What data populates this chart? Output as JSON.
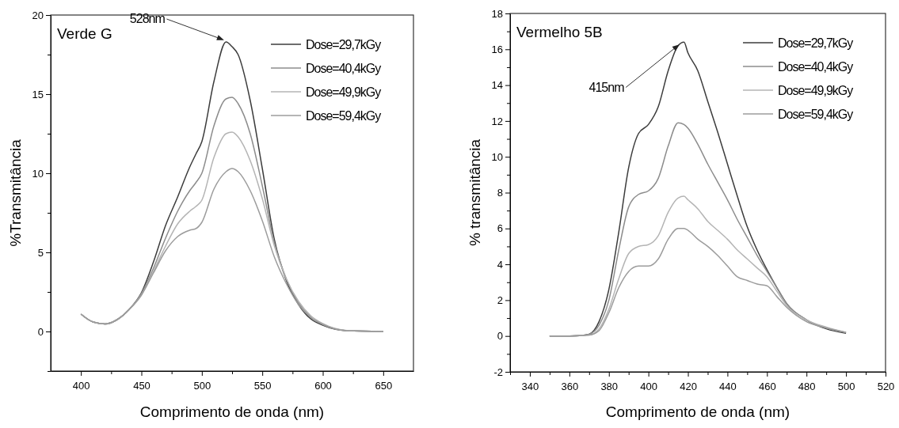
{
  "chart_data": [
    {
      "type": "line",
      "title": "Verde G",
      "xlabel": "Comprimento de onda (nm)",
      "ylabel": "%Transmitância",
      "xlim": [
        375,
        675
      ],
      "ylim": [
        -2.5,
        20
      ],
      "xticks": [
        400,
        {
          "value": 425,
          "label": null
        },
        450,
        {
          "value": 475,
          "label": null
        },
        500,
        {
          "value": 525,
          "label": null
        },
        550,
        {
          "value": 575,
          "label": null
        },
        600,
        {
          "value": 625,
          "label": null
        },
        650
      ],
      "yticks": [
        {
          "value": -2.5,
          "label": null
        },
        0,
        {
          "value": 2.5,
          "label": null
        },
        5,
        {
          "value": 7.5,
          "label": null
        },
        10,
        {
          "value": 12.5,
          "label": null
        },
        15,
        {
          "value": 17.5,
          "label": null
        },
        20
      ],
      "grid": false,
      "legend": "top right",
      "marker": "none",
      "line_style": "solid",
      "x": [
        400,
        410,
        420,
        430,
        440,
        450,
        460,
        470,
        480,
        490,
        495,
        500,
        510,
        520,
        525,
        530,
        540,
        550,
        560,
        570,
        580,
        590,
        600,
        620,
        650
      ],
      "series": [
        {
          "name": "Dose=29,7kGy",
          "color": "#3c3c3c",
          "values": [
            1.1,
            0.6,
            0.48,
            0.75,
            1.4,
            2.45,
            4.4,
            6.7,
            8.5,
            10.4,
            11.2,
            12.0,
            15.8,
            18.3,
            18.0,
            17.5,
            14.6,
            10.3,
            5.8,
            3.2,
            1.7,
            0.8,
            0.4,
            0.05,
            0
          ]
        },
        {
          "name": "Dose=40,4kGy",
          "color": "#8c8c8c",
          "values": [
            1.1,
            0.6,
            0.48,
            0.75,
            1.4,
            2.4,
            4.0,
            5.9,
            7.6,
            8.9,
            9.4,
            10.0,
            13.0,
            14.7,
            14.8,
            14.4,
            12.5,
            9.2,
            5.6,
            3.3,
            1.8,
            0.9,
            0.45,
            0.05,
            0
          ]
        },
        {
          "name": "Dose=49,9kGy",
          "color": "#b4b4b4",
          "values": [
            1.1,
            0.6,
            0.48,
            0.75,
            1.4,
            2.3,
            3.8,
            5.4,
            6.8,
            7.6,
            7.9,
            8.3,
            11.0,
            12.5,
            12.6,
            12.3,
            10.8,
            8.4,
            5.4,
            3.3,
            1.9,
            1.0,
            0.5,
            0.06,
            0
          ]
        },
        {
          "name": "Dose=59,4kGy",
          "color": "#9c9c9c",
          "values": [
            1.1,
            0.6,
            0.48,
            0.75,
            1.4,
            2.3,
            3.7,
            5.1,
            6.0,
            6.4,
            6.5,
            6.9,
            9.0,
            10.1,
            10.3,
            10.1,
            8.9,
            7.0,
            4.7,
            3.0,
            1.7,
            0.9,
            0.45,
            0.05,
            0
          ]
        }
      ],
      "annotations": [
        {
          "text": "528nm",
          "x": 519,
          "y": 18.4
        }
      ]
    },
    {
      "type": "line",
      "title": "Vermelho 5B",
      "xlabel": "Comprimento de onda (nm)",
      "ylabel": "% transmitância",
      "xlim": [
        330,
        520
      ],
      "ylim": [
        -2,
        18
      ],
      "xticks": [
        {
          "value": 330,
          "label": null
        },
        340,
        {
          "value": 350,
          "label": null
        },
        360,
        {
          "value": 370,
          "label": null
        },
        380,
        {
          "value": 390,
          "label": null
        },
        400,
        {
          "value": 410,
          "label": null
        },
        420,
        {
          "value": 430,
          "label": null
        },
        440,
        {
          "value": 450,
          "label": null
        },
        460,
        {
          "value": 470,
          "label": null
        },
        480,
        {
          "value": 490,
          "label": null
        },
        500,
        {
          "value": 510,
          "label": null
        },
        520
      ],
      "yticks": [
        -2,
        {
          "value": -1,
          "label": null
        },
        0,
        {
          "value": 1,
          "label": null
        },
        2,
        {
          "value": 3,
          "label": null
        },
        4,
        {
          "value": 5,
          "label": null
        },
        6,
        {
          "value": 7,
          "label": null
        },
        8,
        {
          "value": 9,
          "label": null
        },
        10,
        {
          "value": 11,
          "label": null
        },
        12,
        {
          "value": 13,
          "label": null
        },
        14,
        {
          "value": 15,
          "label": null
        },
        16,
        {
          "value": 17,
          "label": null
        },
        18
      ],
      "grid": false,
      "legend": "top right",
      "marker": "none",
      "line_style": "solid",
      "x": [
        350,
        360,
        365,
        370,
        375,
        380,
        385,
        390,
        395,
        400,
        405,
        410,
        415,
        418,
        420,
        425,
        430,
        435,
        440,
        445,
        450,
        455,
        460,
        465,
        470,
        480,
        490,
        500
      ],
      "series": [
        {
          "name": "Dose=29,7kGy",
          "color": "#3c3c3c",
          "values": [
            0,
            0,
            0.02,
            0.1,
            0.8,
            2.6,
            5.8,
            9.4,
            11.3,
            11.8,
            12.8,
            14.8,
            16.2,
            16.4,
            15.8,
            14.8,
            13.1,
            11.4,
            9.6,
            7.8,
            6.1,
            4.8,
            3.7,
            2.7,
            1.8,
            0.9,
            0.4,
            0.15
          ]
        },
        {
          "name": "Dose=40,4kGy",
          "color": "#8c8c8c",
          "values": [
            0,
            0,
            0.02,
            0.1,
            0.6,
            2.0,
            4.8,
            7.2,
            7.9,
            8.1,
            8.8,
            10.6,
            11.9,
            11.8,
            11.6,
            10.7,
            9.6,
            8.6,
            7.6,
            6.5,
            5.5,
            4.5,
            3.6,
            2.7,
            1.8,
            0.9,
            0.45,
            0.2
          ]
        },
        {
          "name": "Dose=49,9kGy",
          "color": "#b4b4b4",
          "values": [
            0,
            0,
            0.02,
            0.05,
            0.4,
            1.5,
            3.2,
            4.6,
            5.0,
            5.1,
            5.6,
            6.9,
            7.7,
            7.8,
            7.6,
            7.1,
            6.4,
            5.9,
            5.4,
            4.8,
            4.3,
            3.8,
            3.3,
            2.5,
            1.7,
            0.9,
            0.5,
            0.2
          ]
        },
        {
          "name": "Dose=59,4kGy",
          "color": "#9c9c9c",
          "values": [
            0,
            0,
            0.02,
            0.05,
            0.3,
            1.3,
            2.7,
            3.6,
            3.9,
            3.9,
            4.3,
            5.4,
            6.0,
            6.0,
            5.9,
            5.4,
            5.0,
            4.5,
            3.9,
            3.3,
            3.1,
            2.9,
            2.8,
            2.2,
            1.6,
            0.8,
            0.45,
            0.2
          ]
        }
      ],
      "annotations": [
        {
          "text": "415nm",
          "x": 416,
          "y": 16.3
        }
      ]
    }
  ]
}
